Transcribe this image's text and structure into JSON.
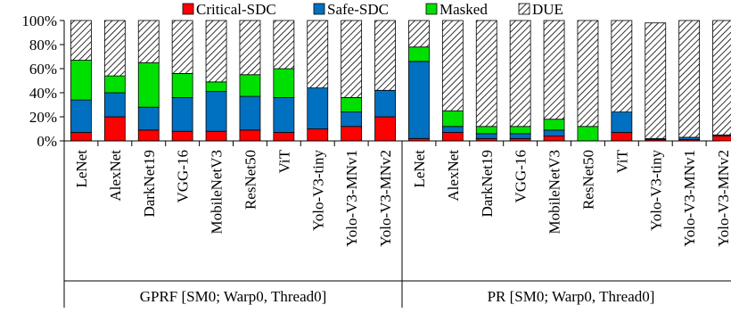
{
  "chart_data": {
    "type": "bar",
    "stacked": true,
    "y_axis": {
      "ylim": [
        0,
        100
      ],
      "ticks": [
        0,
        20,
        40,
        60,
        80,
        100
      ],
      "tick_labels": [
        "0%",
        "20%",
        "40%",
        "60%",
        "80%",
        "100%"
      ]
    },
    "legend": {
      "placement": "top",
      "entries": [
        {
          "key": "critical",
          "label": "Critical-SDC",
          "color": "#ff0000"
        },
        {
          "key": "safe",
          "label": "Safe-SDC",
          "color": "#0070c0"
        },
        {
          "key": "masked",
          "label": "Masked",
          "color": "#00e000"
        },
        {
          "key": "due",
          "label": "DUE",
          "color": "hatched"
        }
      ]
    },
    "groups": [
      {
        "label": "GPRF [SM0; Warp0, Thread0]",
        "categories": [
          "LeNet",
          "AlexNet",
          "DarkNet19",
          "VGG-16",
          "MobileNetV3",
          "ResNet50",
          "ViT",
          "Yolo-V3-tiny",
          "Yolo-V3-MNv1",
          "Yolo-V3-MNv2"
        ],
        "series": {
          "critical": [
            7,
            20,
            9,
            8,
            8,
            9,
            7,
            10,
            12,
            20
          ],
          "safe": [
            27,
            20,
            19,
            28,
            33,
            28,
            29,
            34,
            12,
            22
          ],
          "masked": [
            33,
            14,
            37,
            20,
            8,
            18,
            24,
            0,
            12,
            0
          ],
          "due": [
            33,
            46,
            35,
            44,
            51,
            45,
            40,
            56,
            64,
            58
          ]
        }
      },
      {
        "label": "PR [SM0; Warp0, Thread0]",
        "categories": [
          "LeNet",
          "AlexNet",
          "DarkNet19",
          "VGG-16",
          "MobileNetV3",
          "ResNet50",
          "ViT",
          "Yolo-V3-tiny",
          "Yolo-V3-MNv1",
          "Yolo-V3-MNv2"
        ],
        "series": {
          "critical": [
            2,
            7,
            2,
            2,
            4,
            0,
            7,
            1,
            1,
            4
          ],
          "safe": [
            64,
            5,
            4,
            4,
            5,
            0,
            17,
            1,
            2,
            1
          ],
          "masked": [
            12,
            13,
            6,
            6,
            9,
            12,
            0,
            0,
            0,
            0
          ],
          "due": [
            22,
            75,
            88,
            88,
            82,
            88,
            76,
            96,
            97,
            95
          ]
        }
      }
    ],
    "grid": false
  }
}
